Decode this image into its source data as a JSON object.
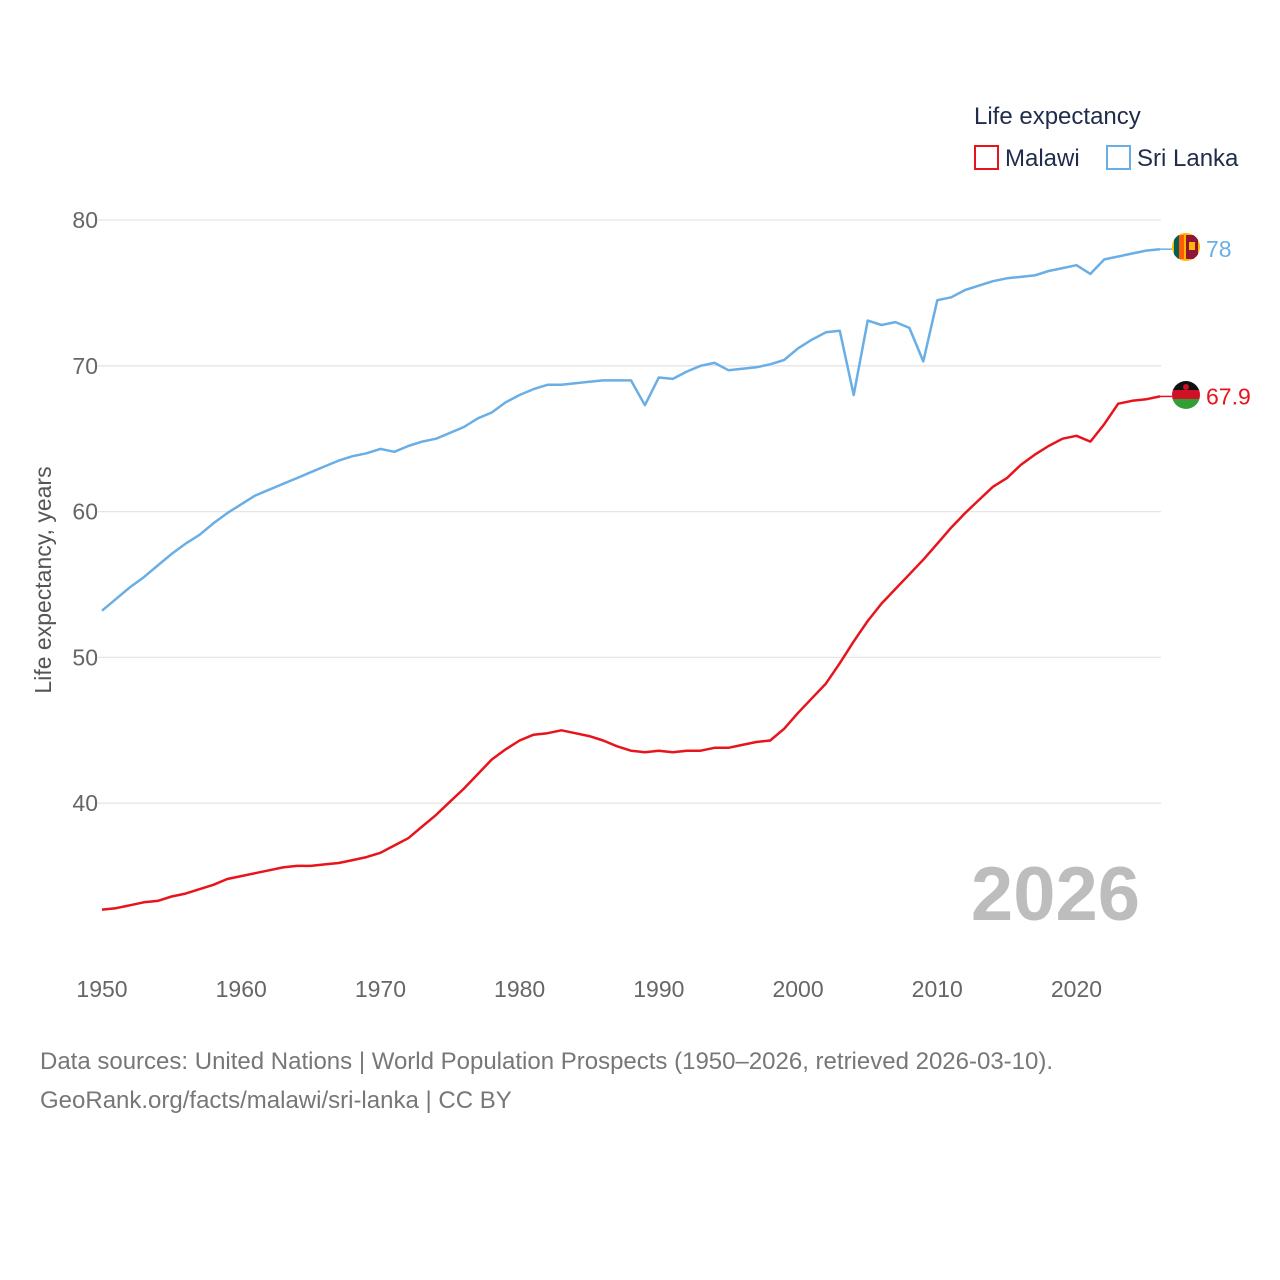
{
  "chart_data": {
    "type": "line",
    "legend_title": "Life expectancy",
    "ylabel": "Life expectancy, years",
    "xlabel": "",
    "current_year": "2026",
    "xlim": [
      1950,
      2026
    ],
    "ylim": [
      30,
      80
    ],
    "y_ticks": [
      40,
      50,
      60,
      70,
      80
    ],
    "x_ticks": [
      1950,
      1960,
      1970,
      1980,
      1990,
      2000,
      2010,
      2020
    ],
    "legend_position": "top-right",
    "grid": true,
    "x": [
      1950,
      1951,
      1952,
      1953,
      1954,
      1955,
      1956,
      1957,
      1958,
      1959,
      1960,
      1961,
      1962,
      1963,
      1964,
      1965,
      1966,
      1967,
      1968,
      1969,
      1970,
      1971,
      1972,
      1973,
      1974,
      1975,
      1976,
      1977,
      1978,
      1979,
      1980,
      1981,
      1982,
      1983,
      1984,
      1985,
      1986,
      1987,
      1988,
      1989,
      1990,
      1991,
      1992,
      1993,
      1994,
      1995,
      1996,
      1997,
      1998,
      1999,
      2000,
      2001,
      2002,
      2003,
      2004,
      2005,
      2006,
      2007,
      2008,
      2009,
      2010,
      2011,
      2012,
      2013,
      2014,
      2015,
      2016,
      2017,
      2018,
      2019,
      2020,
      2021,
      2022,
      2023,
      2024,
      2025,
      2026
    ],
    "series": [
      {
        "name": "Malawi",
        "color": "#e8141c",
        "end_label": "67.9",
        "flag": "malawi-flag",
        "values": [
          32.7,
          32.8,
          33.0,
          33.2,
          33.3,
          33.6,
          33.8,
          34.1,
          34.4,
          34.8,
          35.0,
          35.2,
          35.4,
          35.6,
          35.7,
          35.7,
          35.8,
          35.9,
          36.1,
          36.3,
          36.6,
          37.1,
          37.6,
          38.4,
          39.2,
          40.1,
          41.0,
          42.0,
          43.0,
          43.7,
          44.3,
          44.7,
          44.8,
          45.0,
          44.8,
          44.6,
          44.3,
          43.9,
          43.6,
          43.5,
          43.6,
          43.5,
          43.6,
          43.6,
          43.8,
          43.8,
          44.0,
          44.2,
          44.3,
          45.1,
          46.2,
          47.2,
          48.2,
          49.6,
          51.1,
          52.5,
          53.7,
          54.7,
          55.7,
          56.7,
          57.8,
          58.9,
          59.9,
          60.8,
          61.7,
          62.3,
          63.2,
          63.9,
          64.5,
          65.0,
          65.2,
          64.8,
          66.0,
          67.4,
          67.6,
          67.7,
          67.9
        ]
      },
      {
        "name": "Sri Lanka",
        "color": "#6aaee6",
        "end_label": "78",
        "flag": "sri-lanka-flag",
        "values": [
          53.2,
          54.0,
          54.8,
          55.5,
          56.3,
          57.1,
          57.8,
          58.4,
          59.2,
          59.9,
          60.5,
          61.1,
          61.5,
          61.9,
          62.3,
          62.7,
          63.1,
          63.5,
          63.8,
          64.0,
          64.3,
          64.1,
          64.5,
          64.8,
          65.0,
          65.4,
          65.8,
          66.4,
          66.8,
          67.5,
          68.0,
          68.4,
          68.7,
          68.7,
          68.8,
          68.9,
          69.0,
          69.0,
          69.0,
          67.3,
          69.2,
          69.1,
          69.6,
          70.0,
          70.2,
          69.7,
          69.8,
          69.9,
          70.1,
          70.4,
          71.2,
          71.8,
          72.3,
          72.4,
          68.0,
          73.1,
          72.8,
          73.0,
          72.6,
          70.3,
          74.5,
          74.7,
          75.2,
          75.5,
          75.8,
          76.0,
          76.1,
          76.2,
          76.5,
          76.7,
          76.9,
          76.3,
          77.3,
          77.5,
          77.7,
          77.9,
          78.0
        ]
      }
    ]
  },
  "source": {
    "line1": "Data sources: United Nations | World Population Prospects (1950–2026, retrieved 2026-03-10).",
    "line2": "GeoRank.org/facts/malawi/sri-lanka | CC BY"
  }
}
